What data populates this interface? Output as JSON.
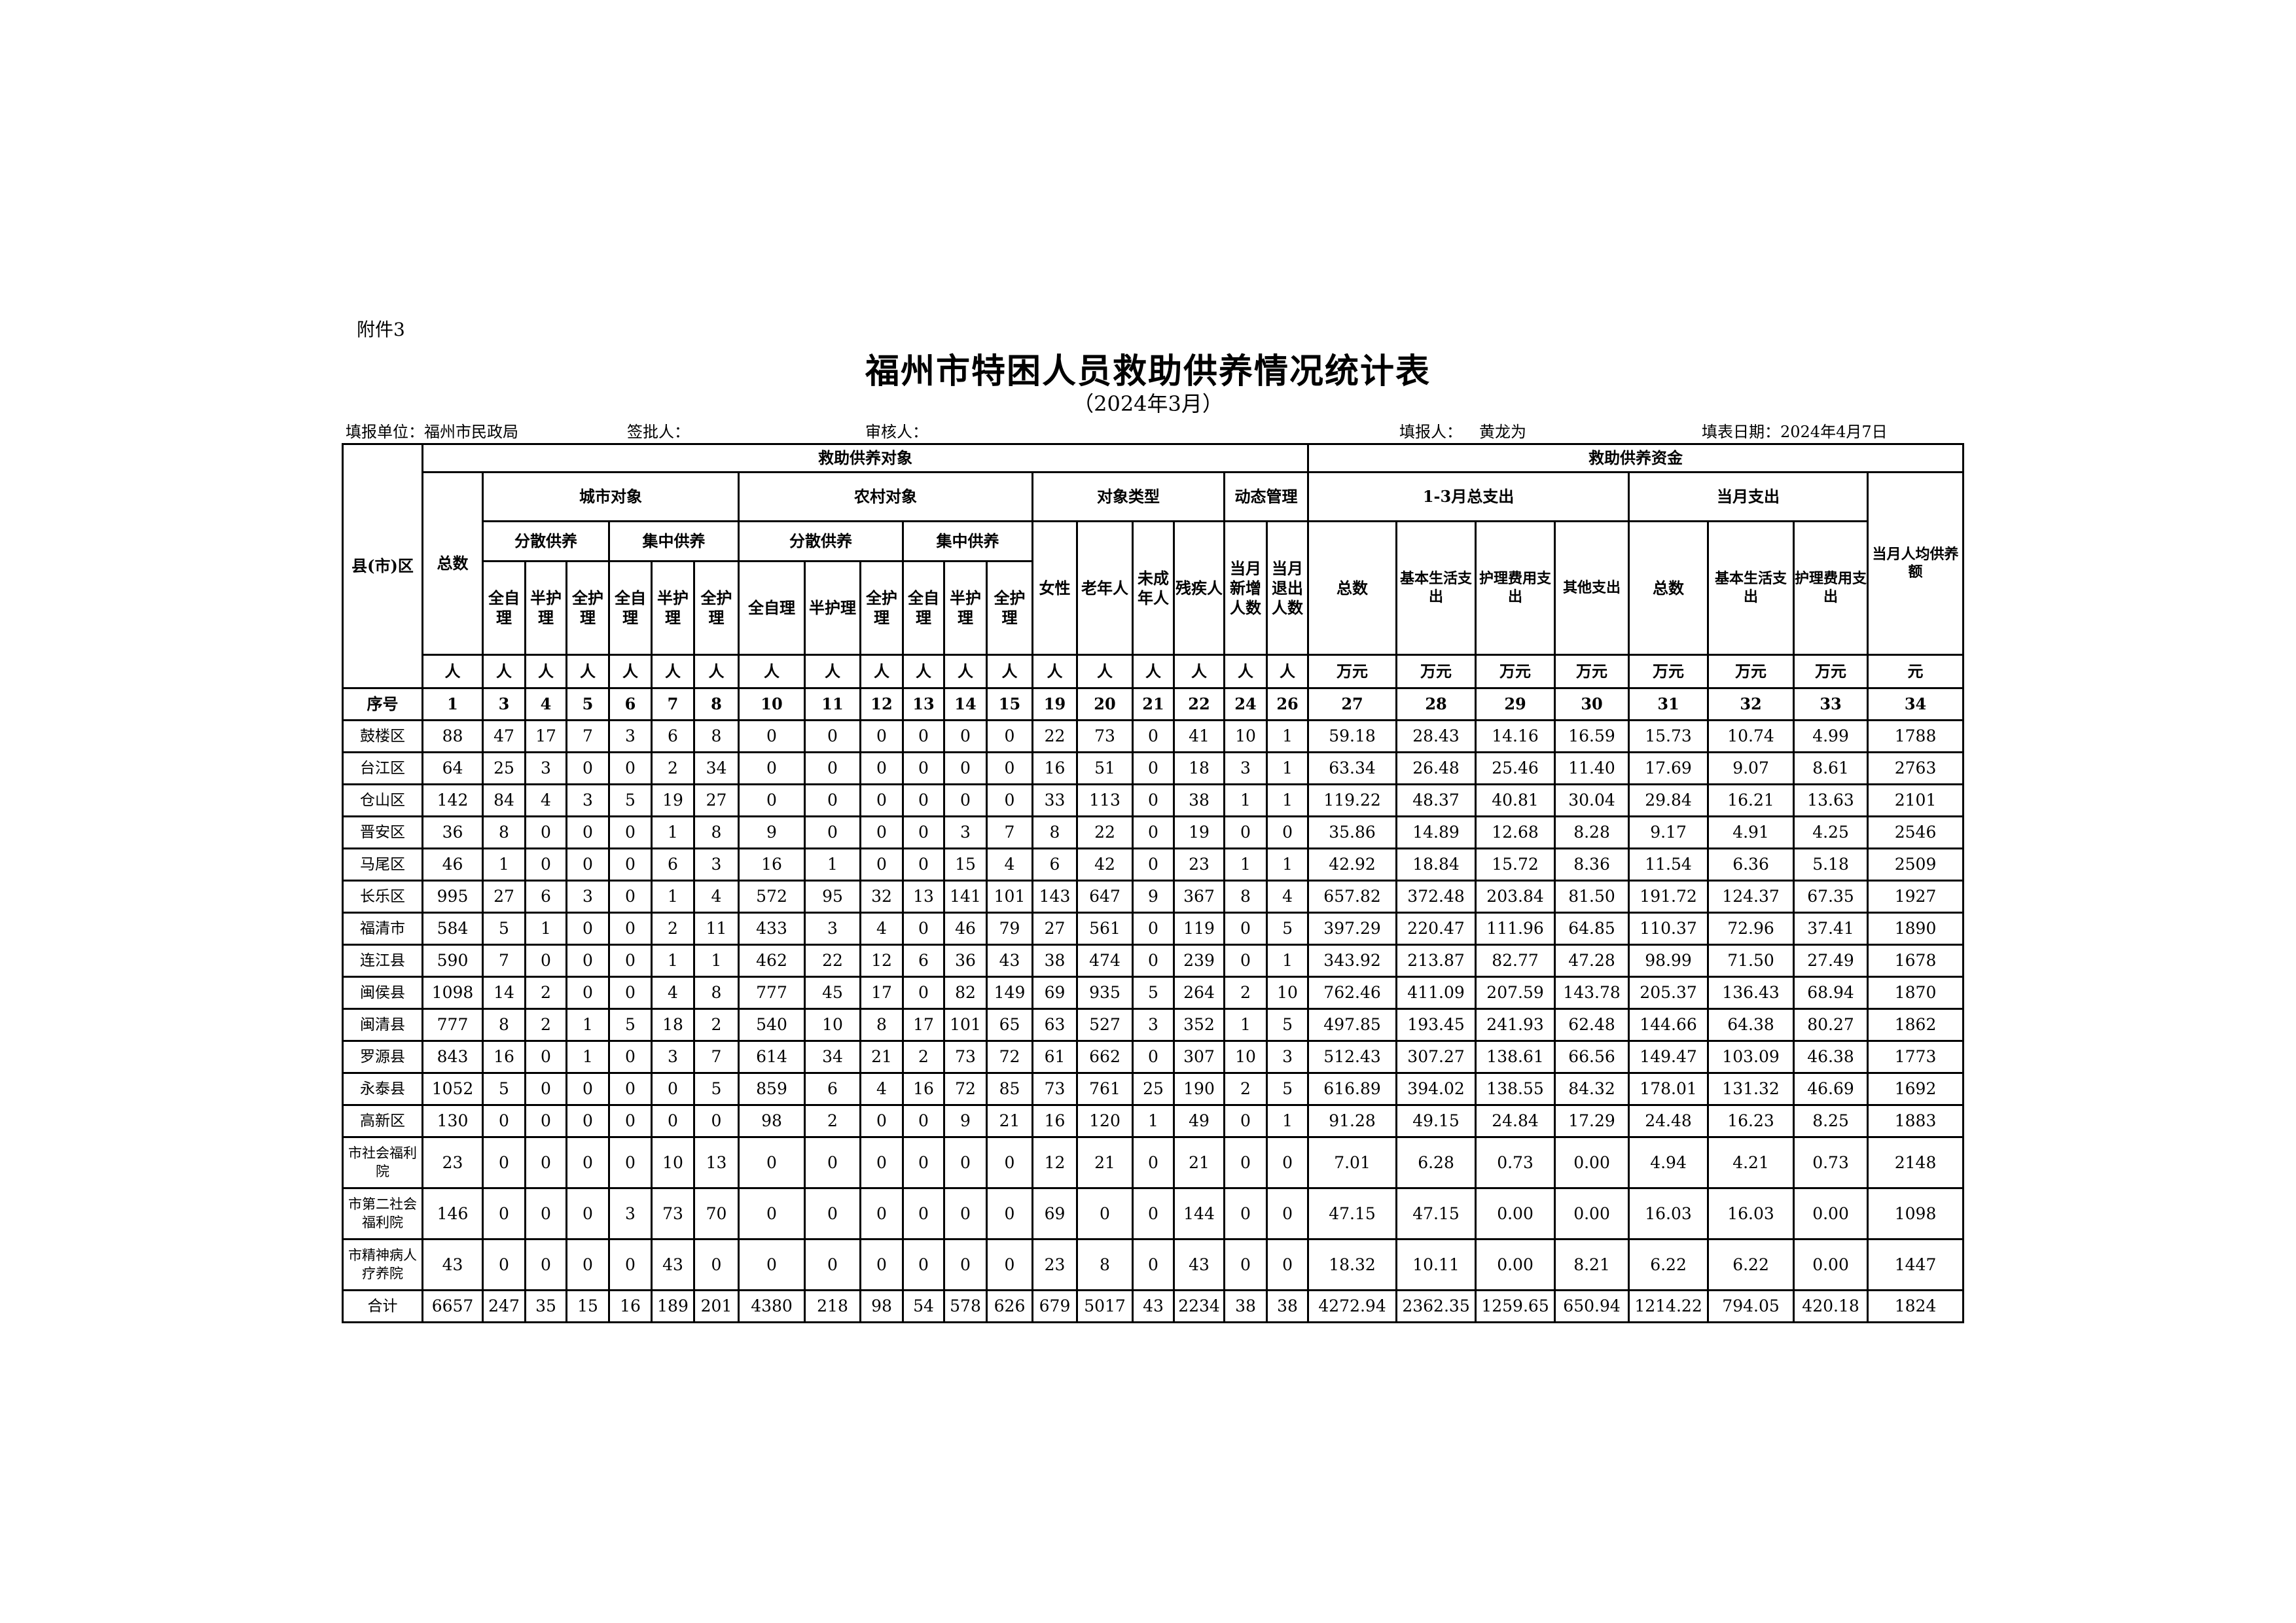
{
  "attachment": "附件3",
  "title": "福州市特困人员救助供养情况统计表",
  "subtitle": "（2024年3月）",
  "meta": {
    "unit": "填报单位：福州市民政局",
    "approver": "签批人：",
    "reviewer": "审核人：",
    "filler_label": "填报人：",
    "filler": "黄龙为",
    "date": "填表日期：2024年4月7日"
  },
  "header": {
    "district": "县(市)区",
    "objects": "救助供养对象",
    "funds": "救助供养资金",
    "total": "总数",
    "urban": "城市对象",
    "rural": "农村对象",
    "type": "对象类型",
    "dynamic": "动态管理",
    "q_total": "1-3月总支出",
    "m_total": "当月支出",
    "per_capita": "当月人均供养额",
    "dispersed": "分散供养",
    "centralized": "集中供养",
    "female": "女性",
    "elderly": "老年人",
    "minor": "未成年人",
    "disabled": "残疾人",
    "new": "当月新增人数",
    "exit": "当月退出人数",
    "sum": "总数",
    "basic": "基本生活支出",
    "care": "护理费用支出",
    "other": "其他支出",
    "self": "全自理",
    "semi": "半护理",
    "full": "全护理",
    "units": [
      "人",
      "人",
      "人",
      "人",
      "人",
      "人",
      "人",
      "人",
      "人",
      "人",
      "人",
      "人",
      "人",
      "人",
      "人",
      "人",
      "人",
      "人",
      "人",
      "万元",
      "万元",
      "万元",
      "万元",
      "万元",
      "万元",
      "万元",
      "元"
    ],
    "serial_label": "序号",
    "serials": [
      "1",
      "3",
      "4",
      "5",
      "6",
      "7",
      "8",
      "10",
      "11",
      "12",
      "13",
      "14",
      "15",
      "19",
      "20",
      "21",
      "22",
      "24",
      "26",
      "27",
      "28",
      "29",
      "30",
      "31",
      "32",
      "33",
      "34"
    ]
  },
  "rows": [
    {
      "name": "鼓楼区",
      "v": [
        "88",
        "47",
        "17",
        "7",
        "3",
        "6",
        "8",
        "0",
        "0",
        "0",
        "0",
        "0",
        "0",
        "22",
        "73",
        "0",
        "41",
        "10",
        "1",
        "59.18",
        "28.43",
        "14.16",
        "16.59",
        "15.73",
        "10.74",
        "4.99",
        "1788"
      ]
    },
    {
      "name": "台江区",
      "v": [
        "64",
        "25",
        "3",
        "0",
        "0",
        "2",
        "34",
        "0",
        "0",
        "0",
        "0",
        "0",
        "0",
        "16",
        "51",
        "0",
        "18",
        "3",
        "1",
        "63.34",
        "26.48",
        "25.46",
        "11.40",
        "17.69",
        "9.07",
        "8.61",
        "2763"
      ]
    },
    {
      "name": "仓山区",
      "v": [
        "142",
        "84",
        "4",
        "3",
        "5",
        "19",
        "27",
        "0",
        "0",
        "0",
        "0",
        "0",
        "0",
        "33",
        "113",
        "0",
        "38",
        "1",
        "1",
        "119.22",
        "48.37",
        "40.81",
        "30.04",
        "29.84",
        "16.21",
        "13.63",
        "2101"
      ]
    },
    {
      "name": "晋安区",
      "v": [
        "36",
        "8",
        "0",
        "0",
        "0",
        "1",
        "8",
        "9",
        "0",
        "0",
        "0",
        "3",
        "7",
        "8",
        "22",
        "0",
        "19",
        "0",
        "0",
        "35.86",
        "14.89",
        "12.68",
        "8.28",
        "9.17",
        "4.91",
        "4.25",
        "2546"
      ]
    },
    {
      "name": "马尾区",
      "v": [
        "46",
        "1",
        "0",
        "0",
        "0",
        "6",
        "3",
        "16",
        "1",
        "0",
        "0",
        "15",
        "4",
        "6",
        "42",
        "0",
        "23",
        "1",
        "1",
        "42.92",
        "18.84",
        "15.72",
        "8.36",
        "11.54",
        "6.36",
        "5.18",
        "2509"
      ]
    },
    {
      "name": "长乐区",
      "v": [
        "995",
        "27",
        "6",
        "3",
        "0",
        "1",
        "4",
        "572",
        "95",
        "32",
        "13",
        "141",
        "101",
        "143",
        "647",
        "9",
        "367",
        "8",
        "4",
        "657.82",
        "372.48",
        "203.84",
        "81.50",
        "191.72",
        "124.37",
        "67.35",
        "1927"
      ]
    },
    {
      "name": "福清市",
      "v": [
        "584",
        "5",
        "1",
        "0",
        "0",
        "2",
        "11",
        "433",
        "3",
        "4",
        "0",
        "46",
        "79",
        "27",
        "561",
        "0",
        "119",
        "0",
        "5",
        "397.29",
        "220.47",
        "111.96",
        "64.85",
        "110.37",
        "72.96",
        "37.41",
        "1890"
      ]
    },
    {
      "name": "连江县",
      "v": [
        "590",
        "7",
        "0",
        "0",
        "0",
        "1",
        "1",
        "462",
        "22",
        "12",
        "6",
        "36",
        "43",
        "38",
        "474",
        "0",
        "239",
        "0",
        "1",
        "343.92",
        "213.87",
        "82.77",
        "47.28",
        "98.99",
        "71.50",
        "27.49",
        "1678"
      ]
    },
    {
      "name": "闽侯县",
      "v": [
        "1098",
        "14",
        "2",
        "0",
        "0",
        "4",
        "8",
        "777",
        "45",
        "17",
        "0",
        "82",
        "149",
        "69",
        "935",
        "5",
        "264",
        "2",
        "10",
        "762.46",
        "411.09",
        "207.59",
        "143.78",
        "205.37",
        "136.43",
        "68.94",
        "1870"
      ]
    },
    {
      "name": "闽清县",
      "v": [
        "777",
        "8",
        "2",
        "1",
        "5",
        "18",
        "2",
        "540",
        "10",
        "8",
        "17",
        "101",
        "65",
        "63",
        "527",
        "3",
        "352",
        "1",
        "5",
        "497.85",
        "193.45",
        "241.93",
        "62.48",
        "144.66",
        "64.38",
        "80.27",
        "1862"
      ]
    },
    {
      "name": "罗源县",
      "v": [
        "843",
        "16",
        "0",
        "1",
        "0",
        "3",
        "7",
        "614",
        "34",
        "21",
        "2",
        "73",
        "72",
        "61",
        "662",
        "0",
        "307",
        "10",
        "3",
        "512.43",
        "307.27",
        "138.61",
        "66.56",
        "149.47",
        "103.09",
        "46.38",
        "1773"
      ]
    },
    {
      "name": "永泰县",
      "v": [
        "1052",
        "5",
        "0",
        "0",
        "0",
        "0",
        "5",
        "859",
        "6",
        "4",
        "16",
        "72",
        "85",
        "73",
        "761",
        "25",
        "190",
        "2",
        "5",
        "616.89",
        "394.02",
        "138.55",
        "84.32",
        "178.01",
        "131.32",
        "46.69",
        "1692"
      ]
    },
    {
      "name": "高新区",
      "v": [
        "130",
        "0",
        "0",
        "0",
        "0",
        "0",
        "0",
        "98",
        "2",
        "0",
        "0",
        "9",
        "21",
        "16",
        "120",
        "1",
        "49",
        "0",
        "1",
        "91.28",
        "49.15",
        "24.84",
        "17.29",
        "24.48",
        "16.23",
        "8.25",
        "1883"
      ]
    },
    {
      "name": "市社会福利院",
      "v": [
        "23",
        "0",
        "0",
        "0",
        "0",
        "10",
        "13",
        "0",
        "0",
        "0",
        "0",
        "0",
        "0",
        "12",
        "21",
        "0",
        "21",
        "0",
        "0",
        "7.01",
        "6.28",
        "0.73",
        "0.00",
        "4.94",
        "4.21",
        "0.73",
        "2148"
      ]
    },
    {
      "name": "市第二社会福利院",
      "v": [
        "146",
        "0",
        "0",
        "0",
        "3",
        "73",
        "70",
        "0",
        "0",
        "0",
        "0",
        "0",
        "0",
        "69",
        "0",
        "0",
        "144",
        "0",
        "0",
        "47.15",
        "47.15",
        "0.00",
        "0.00",
        "16.03",
        "16.03",
        "0.00",
        "1098"
      ]
    },
    {
      "name": "市精神病人疗养院",
      "v": [
        "43",
        "0",
        "0",
        "0",
        "0",
        "43",
        "0",
        "0",
        "0",
        "0",
        "0",
        "0",
        "0",
        "23",
        "8",
        "0",
        "43",
        "0",
        "0",
        "18.32",
        "10.11",
        "0.00",
        "8.21",
        "6.22",
        "6.22",
        "0.00",
        "1447"
      ]
    },
    {
      "name": "合计",
      "v": [
        "6657",
        "247",
        "35",
        "15",
        "16",
        "189",
        "201",
        "4380",
        "218",
        "98",
        "54",
        "578",
        "626",
        "679",
        "5017",
        "43",
        "2234",
        "38",
        "38",
        "4272.94",
        "2362.35",
        "1259.65",
        "650.94",
        "1214.22",
        "794.05",
        "420.18",
        "1824"
      ]
    }
  ]
}
